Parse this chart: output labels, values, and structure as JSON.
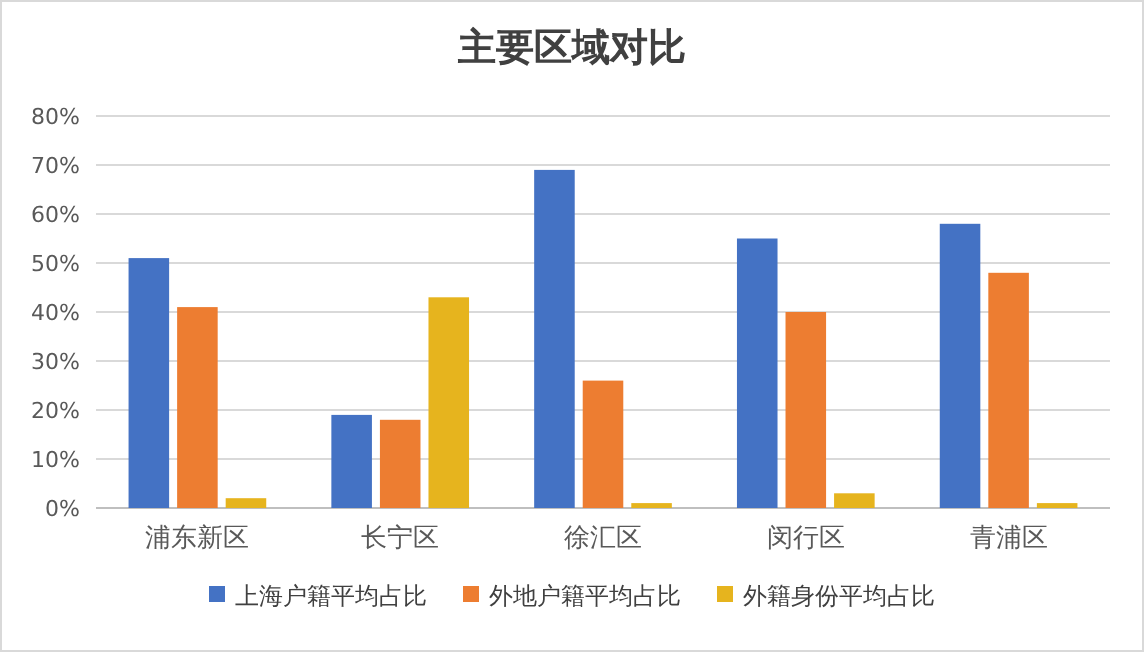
{
  "chart_data": {
    "type": "bar",
    "title": "主要区域对比",
    "categories": [
      "浦东新区",
      "长宁区",
      "徐汇区",
      "闵行区",
      "青浦区"
    ],
    "series": [
      {
        "name": "上海户籍平均占比",
        "color": "#4472c4",
        "values": [
          51,
          19,
          69,
          55,
          58
        ]
      },
      {
        "name": "外地户籍平均占比",
        "color": "#ed7d31",
        "values": [
          41,
          18,
          26,
          40,
          48
        ]
      },
      {
        "name": "外籍身份平均占比",
        "color": "#e6b41e",
        "values": [
          2,
          43,
          1,
          3,
          1
        ]
      }
    ],
    "ylim": [
      0,
      80
    ],
    "yticks": [
      {
        "value": 0,
        "label": "0%"
      },
      {
        "value": 10,
        "label": "10%"
      },
      {
        "value": 20,
        "label": "20%"
      },
      {
        "value": 30,
        "label": "30%"
      },
      {
        "value": 40,
        "label": "40%"
      },
      {
        "value": 50,
        "label": "50%"
      },
      {
        "value": 60,
        "label": "60%"
      },
      {
        "value": 70,
        "label": "70%"
      },
      {
        "value": 80,
        "label": "80%"
      }
    ],
    "grid": "y",
    "legend": "bottom"
  }
}
